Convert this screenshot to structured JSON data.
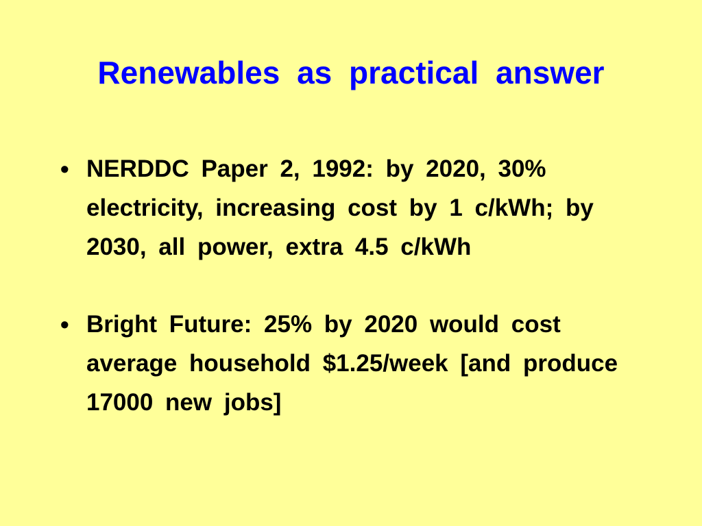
{
  "slide": {
    "title": "Renewables as practical answer",
    "bullet_marker": "•",
    "bullets": [
      {
        "text": "NERDDC Paper 2, 1992: by 2020, 30% electricity, increasing cost by 1 c/kWh; by 2030, all power, extra 4.5 c/kWh"
      },
      {
        "text": "Bright Future: 25% by 2020 would cost average household $1.25/week [and produce 17000 new jobs]"
      }
    ],
    "colors": {
      "background": "#ffff99",
      "title": "#0000ff",
      "body_text": "#000000"
    }
  }
}
